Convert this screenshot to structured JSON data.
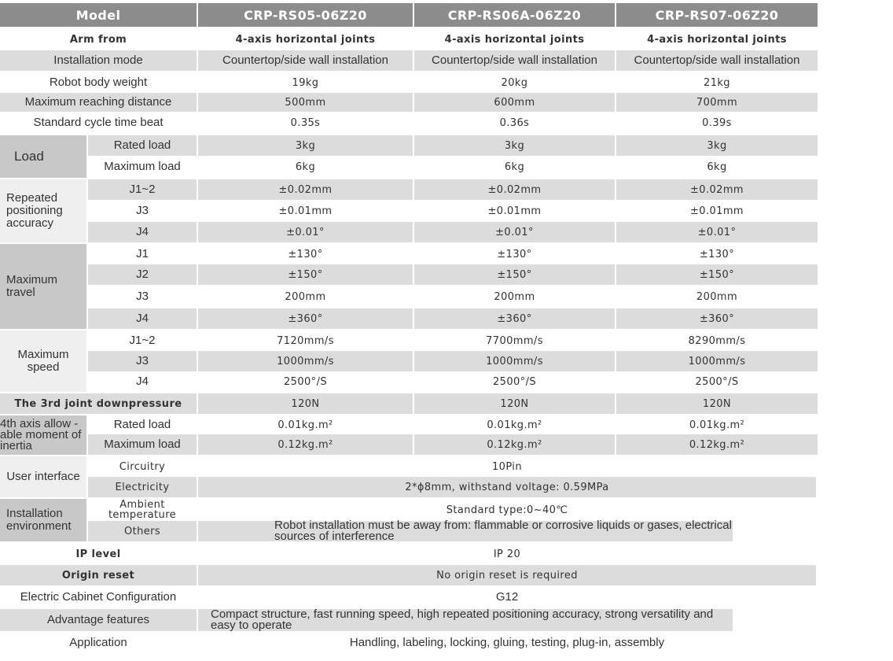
{
  "header": {
    "label": "Model",
    "models": [
      "CRP-RS05-06Z20",
      "CRP-RS06A-06Z20",
      "CRP-RS07-06Z20"
    ]
  },
  "rows": [
    {
      "label": "Arm from",
      "values": [
        "4-axis horizontal joints",
        "4-axis horizontal joints",
        "4-axis horizontal joints"
      ]
    },
    {
      "label": "Installation mode",
      "values": [
        "Countertop/side wall installation",
        "Countertop/side wall installation",
        "Countertop/side wall installation"
      ]
    },
    {
      "label": "Robot body weight",
      "values": [
        "19kg",
        "20kg",
        "21kg"
      ]
    },
    {
      "label": "Maximum reaching distance",
      "values": [
        "500mm",
        "600mm",
        "700mm"
      ]
    },
    {
      "label": "Standard cycle time beat",
      "values": [
        "0.35s",
        "0.36s",
        "0.39s"
      ]
    },
    {
      "sub": "Rated load",
      "values": [
        "3kg",
        "3kg",
        "3kg"
      ]
    },
    {
      "sub": "Maximum load",
      "values": [
        "6kg",
        "6kg",
        "6kg"
      ]
    },
    {
      "sub": "J1~2",
      "values": [
        "±0.02mm",
        "±0.02mm",
        "±0.02mm"
      ]
    },
    {
      "sub": "J3",
      "values": [
        "±0.01mm",
        "±0.01mm",
        "±0.01mm"
      ]
    },
    {
      "sub": "J4",
      "values": [
        "±0.01°",
        "±0.01°",
        "±0.01°"
      ]
    },
    {
      "sub": "J1",
      "values": [
        "±130°",
        "±130°",
        "±130°"
      ]
    },
    {
      "sub": "J2",
      "values": [
        "±150°",
        "±150°",
        "±150°"
      ]
    },
    {
      "sub": "J3",
      "values": [
        "200mm",
        "200mm",
        "200mm"
      ]
    },
    {
      "sub": "J4",
      "values": [
        "±360°",
        "±360°",
        "±360°"
      ]
    },
    {
      "sub": "J1~2",
      "values": [
        "7120mm/s",
        "7700mm/s",
        "8290mm/s"
      ]
    },
    {
      "sub": "J3",
      "values": [
        "1000mm/s",
        "1000mm/s",
        "1000mm/s"
      ]
    },
    {
      "sub": "J4",
      "values": [
        "2500°/S",
        "2500°/S",
        "2500°/S"
      ]
    },
    {
      "label": "The 3rd joint downpressure",
      "values": [
        "120N",
        "120N",
        "120N"
      ]
    },
    {
      "sub": "Rated load",
      "values": [
        "0.01kg.m²",
        "0.01kg.m²",
        "0.01kg.m²"
      ]
    },
    {
      "sub": "Maximum load",
      "values": [
        "0.12kg.m²",
        "0.12kg.m²",
        "0.12kg.m²"
      ]
    },
    {
      "sub": "Circuitry",
      "value": "10Pin"
    },
    {
      "sub": "Electricity",
      "value": "2*ϕ8mm, withstand voltage: 0.59MPa"
    },
    {
      "sub": "Ambient temperature",
      "value": "Standard type:0~40℃"
    },
    {
      "sub": "Others",
      "value": "Robot installation must be away from: flammable or corrosive liquids or gases, electrical sources of interference"
    },
    {
      "label": "IP level",
      "value": "IP 20"
    },
    {
      "label": "Origin reset",
      "value": "No origin reset is required"
    },
    {
      "label": "Electric Cabinet Configuration",
      "value": "G12"
    },
    {
      "label": "Advantage features",
      "value": "Compact structure, fast running speed, high repeated positioning accuracy, strong versatility and easy to operate"
    },
    {
      "label": "Application",
      "value": "Handling, labeling, locking, gluing, testing, plug-in, assembly"
    }
  ],
  "groups": [
    {
      "label": "Load"
    },
    {
      "label": "Repeated positioning accuracy"
    },
    {
      "label": "Maximum travel"
    },
    {
      "label": "Maximum speed"
    },
    {
      "label": "4th axis allow -able moment of inertia"
    },
    {
      "label": "User interface"
    },
    {
      "label": "Installation environment"
    }
  ]
}
